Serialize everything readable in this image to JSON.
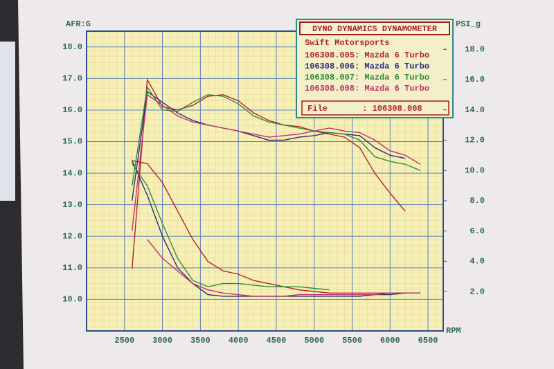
{
  "chart_data": {
    "type": "line",
    "title": "DYNO DYNAMICS DYNAMOMETER",
    "subtitle": "Swift Motorsports",
    "file_label": "File       : 106308.008",
    "y_label": "AFR:G",
    "y2_label": "PSI_g",
    "x_label": "RPM",
    "x": [
      2600,
      2800,
      3000,
      3200,
      3400,
      3600,
      3800,
      4000,
      4200,
      4400,
      4600,
      4800,
      5000,
      5200,
      5400,
      5600,
      5800,
      6000,
      6200,
      6400
    ],
    "xlim": [
      2000,
      6700
    ],
    "xticks": [
      2500,
      3000,
      3500,
      4000,
      4500,
      5000,
      5500,
      6000,
      6500
    ],
    "ylim": [
      9.0,
      18.5
    ],
    "yticks": [
      {
        "value": 10,
        "label": "10.0"
      },
      {
        "value": 11,
        "label": "11.0"
      },
      {
        "value": 12,
        "label": "12.0"
      },
      {
        "value": 13,
        "label": "13.0"
      },
      {
        "value": 14,
        "label": "14.0"
      },
      {
        "value": 15,
        "label": "15.0"
      },
      {
        "value": 16,
        "label": "16.0"
      },
      {
        "value": 17,
        "label": "17.0"
      },
      {
        "value": 18,
        "label": "18.0"
      }
    ],
    "y2lim": [
      -0.6,
      19.2
    ],
    "y2ticks": [
      {
        "value": 2,
        "label": "2.0"
      },
      {
        "value": 4,
        "label": "4.0"
      },
      {
        "value": 6,
        "label": "6.0"
      },
      {
        "value": 8,
        "label": "8.0"
      },
      {
        "value": 10,
        "label": "10.0"
      },
      {
        "value": 12,
        "label": "12.0"
      },
      {
        "value": 14,
        "label": "14.0"
      },
      {
        "value": 16,
        "label": "16.0"
      },
      {
        "value": 18,
        "label": "18.0"
      }
    ],
    "grid": true,
    "series": [
      {
        "name": "106308.005: Mazda 6 Turbo",
        "color": "#b3222e",
        "values": [
          14.4,
          14.3,
          13.7,
          12.8,
          11.9,
          11.2,
          10.9,
          10.8,
          10.6,
          10.5,
          10.4,
          10.3,
          10.25,
          10.2,
          10.2,
          10.2,
          10.2,
          10.2,
          10.2,
          10.2
        ],
        "boost_values": [
          3.5,
          16.0,
          14.2,
          14.0,
          14.3,
          14.9,
          15.0,
          14.6,
          13.8,
          13.3,
          13.0,
          12.9,
          12.6,
          12.4,
          12.2,
          11.5,
          9.8,
          8.5,
          7.3,
          null
        ]
      },
      {
        "name": "106308.006: Mazda 6 Turbo",
        "color": "#2b2c78",
        "values": [
          14.4,
          13.3,
          12.0,
          11.0,
          10.5,
          10.15,
          10.1,
          10.1,
          10.1,
          10.1,
          10.1,
          10.1,
          10.1,
          10.1,
          10.1,
          10.1,
          10.15,
          10.15,
          10.2,
          10.2
        ],
        "boost_values": [
          8.0,
          15.2,
          14.5,
          13.8,
          13.3,
          13.0,
          12.8,
          12.6,
          12.3,
          12.0,
          12.0,
          12.2,
          12.3,
          12.5,
          12.4,
          12.3,
          11.5,
          11.0,
          10.8,
          null
        ]
      },
      {
        "name": "106308.007: Mazda 6 Turbo",
        "color": "#2f8a3c",
        "values": [
          14.3,
          13.6,
          12.4,
          11.3,
          10.6,
          10.4,
          10.5,
          10.5,
          10.45,
          10.4,
          10.4,
          10.4,
          10.35,
          10.3,
          null,
          null,
          null,
          null,
          null,
          null
        ],
        "boost_values": [
          9.0,
          15.5,
          14.0,
          13.9,
          14.5,
          15.0,
          14.9,
          14.4,
          13.6,
          13.2,
          13.0,
          12.8,
          12.6,
          12.5,
          12.4,
          12.0,
          10.9,
          10.6,
          10.4,
          10.0
        ]
      },
      {
        "name": "106308.008: Mazda 6 Turbo",
        "color": "#c2306c",
        "values": [
          null,
          11.9,
          11.3,
          10.9,
          10.5,
          10.3,
          10.2,
          10.15,
          10.1,
          10.1,
          10.1,
          10.15,
          10.15,
          10.15,
          10.15,
          10.15,
          10.15,
          10.2,
          10.2,
          10.2
        ],
        "boost_values": [
          6.0,
          15.0,
          14.3,
          13.6,
          13.2,
          13.0,
          12.8,
          12.6,
          12.4,
          12.2,
          12.3,
          12.4,
          12.6,
          12.8,
          12.6,
          12.5,
          12.0,
          11.3,
          11.0,
          10.4
        ]
      }
    ]
  }
}
